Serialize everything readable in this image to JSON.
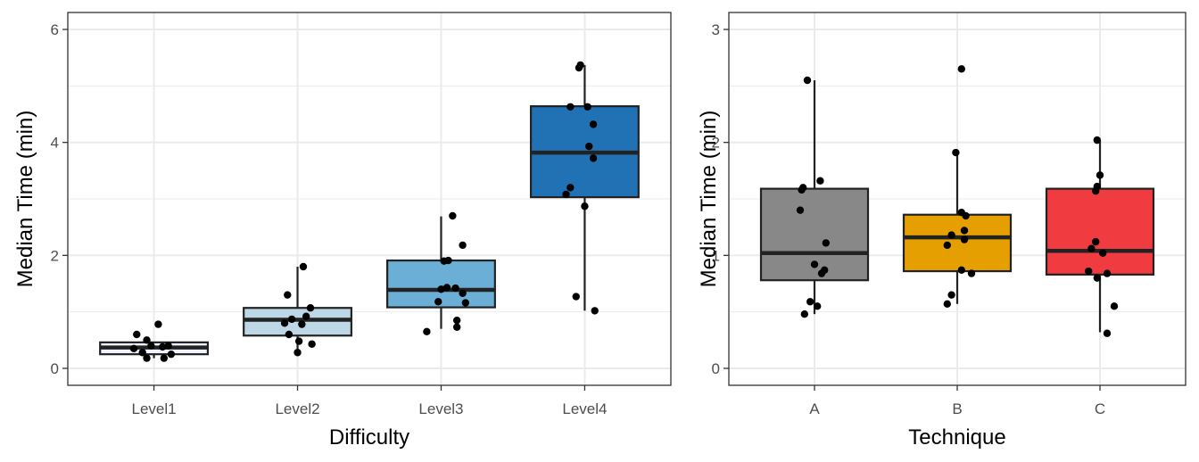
{
  "chart_data": [
    {
      "type": "box",
      "xlabel": "Difficulty",
      "ylabel": "Median Time (min)",
      "ylim": [
        -0.3,
        6.3
      ],
      "yticks": [
        0,
        2,
        4,
        6
      ],
      "grid": true,
      "categories": [
        "Level1",
        "Level2",
        "Level3",
        "Level4"
      ],
      "colors": [
        "#eff3ff",
        "#bdd7e7",
        "#6baed6",
        "#2171b5"
      ],
      "boxes": [
        {
          "whisker_low": 0.18,
          "q1": 0.25,
          "median": 0.37,
          "q3": 0.46,
          "whisker_high": 0.47
        },
        {
          "whisker_low": 0.28,
          "q1": 0.58,
          "median": 0.86,
          "q3": 1.07,
          "whisker_high": 1.8
        },
        {
          "whisker_low": 0.7,
          "q1": 1.08,
          "median": 1.39,
          "q3": 1.91,
          "whisker_high": 2.69
        },
        {
          "whisker_low": 1.02,
          "q1": 3.03,
          "median": 3.82,
          "q3": 4.64,
          "whisker_high": 5.37
        }
      ],
      "points": [
        {
          "cat": 0,
          "dx": -0.12,
          "y": 0.6
        },
        {
          "cat": 0,
          "dx": 0.03,
          "y": 0.78
        },
        {
          "cat": 0,
          "dx": -0.05,
          "y": 0.5
        },
        {
          "cat": 0,
          "dx": 0.1,
          "y": 0.4
        },
        {
          "cat": 0,
          "dx": -0.14,
          "y": 0.35
        },
        {
          "cat": 0,
          "dx": -0.02,
          "y": 0.4
        },
        {
          "cat": 0,
          "dx": 0.06,
          "y": 0.38
        },
        {
          "cat": 0,
          "dx": -0.08,
          "y": 0.28
        },
        {
          "cat": 0,
          "dx": -0.05,
          "y": 0.18
        },
        {
          "cat": 0,
          "dx": 0.12,
          "y": 0.25
        },
        {
          "cat": 0,
          "dx": 0.07,
          "y": 0.18
        },
        {
          "cat": 1,
          "dx": 0.04,
          "y": 1.8
        },
        {
          "cat": 1,
          "dx": -0.07,
          "y": 1.3
        },
        {
          "cat": 1,
          "dx": 0.09,
          "y": 1.07
        },
        {
          "cat": 1,
          "dx": 0.06,
          "y": 0.92
        },
        {
          "cat": 1,
          "dx": -0.04,
          "y": 0.87
        },
        {
          "cat": 1,
          "dx": -0.09,
          "y": 0.8
        },
        {
          "cat": 1,
          "dx": 0.03,
          "y": 0.78
        },
        {
          "cat": 1,
          "dx": -0.06,
          "y": 0.6
        },
        {
          "cat": 1,
          "dx": 0.01,
          "y": 0.48
        },
        {
          "cat": 1,
          "dx": 0.1,
          "y": 0.43
        },
        {
          "cat": 1,
          "dx": 0.0,
          "y": 0.28
        },
        {
          "cat": 2,
          "dx": 0.08,
          "y": 2.7
        },
        {
          "cat": 2,
          "dx": 0.15,
          "y": 2.18
        },
        {
          "cat": 2,
          "dx": 0.05,
          "y": 1.91
        },
        {
          "cat": 2,
          "dx": 0.02,
          "y": 1.9
        },
        {
          "cat": 2,
          "dx": 0.04,
          "y": 1.43
        },
        {
          "cat": 2,
          "dx": 0.1,
          "y": 1.42
        },
        {
          "cat": 2,
          "dx": 0.0,
          "y": 1.4
        },
        {
          "cat": 2,
          "dx": 0.15,
          "y": 1.33
        },
        {
          "cat": 2,
          "dx": 0.17,
          "y": 1.16
        },
        {
          "cat": 2,
          "dx": -0.02,
          "y": 1.18
        },
        {
          "cat": 2,
          "dx": 0.11,
          "y": 0.85
        },
        {
          "cat": 2,
          "dx": 0.11,
          "y": 0.73
        },
        {
          "cat": 2,
          "dx": -0.1,
          "y": 0.65
        },
        {
          "cat": 3,
          "dx": -0.03,
          "y": 5.37
        },
        {
          "cat": 3,
          "dx": -0.04,
          "y": 5.32
        },
        {
          "cat": 3,
          "dx": -0.1,
          "y": 4.63
        },
        {
          "cat": 3,
          "dx": 0.02,
          "y": 4.63
        },
        {
          "cat": 3,
          "dx": 0.06,
          "y": 4.32
        },
        {
          "cat": 3,
          "dx": 0.03,
          "y": 3.93
        },
        {
          "cat": 3,
          "dx": 0.06,
          "y": 3.72
        },
        {
          "cat": 3,
          "dx": -0.1,
          "y": 3.2
        },
        {
          "cat": 3,
          "dx": -0.13,
          "y": 3.08
        },
        {
          "cat": 3,
          "dx": 0.0,
          "y": 2.87
        },
        {
          "cat": 3,
          "dx": -0.06,
          "y": 1.27
        },
        {
          "cat": 3,
          "dx": 0.07,
          "y": 1.02
        }
      ]
    },
    {
      "type": "box",
      "xlabel": "Technique",
      "ylabel": "Median Time (min)",
      "ylim": [
        -0.15,
        3.15
      ],
      "yticks": [
        0,
        1,
        2,
        3
      ],
      "grid": true,
      "categories": [
        "A",
        "B",
        "C"
      ],
      "colors": [
        "#888888",
        "#e69f00",
        "#f03b40"
      ],
      "boxes": [
        {
          "whisker_low": 0.48,
          "q1": 0.78,
          "median": 1.02,
          "q3": 1.59,
          "whisker_high": 2.55
        },
        {
          "whisker_low": 0.57,
          "q1": 0.86,
          "median": 1.16,
          "q3": 1.36,
          "whisker_high": 1.91
        },
        {
          "whisker_low": 0.32,
          "q1": 0.83,
          "median": 1.04,
          "q3": 1.59,
          "whisker_high": 2.02
        }
      ],
      "points": [
        {
          "cat": 0,
          "dx": -0.05,
          "y": 2.55
        },
        {
          "cat": 0,
          "dx": 0.04,
          "y": 1.66
        },
        {
          "cat": 0,
          "dx": -0.08,
          "y": 1.6
        },
        {
          "cat": 0,
          "dx": -0.09,
          "y": 1.58
        },
        {
          "cat": 0,
          "dx": -0.1,
          "y": 1.4
        },
        {
          "cat": 0,
          "dx": 0.08,
          "y": 1.11
        },
        {
          "cat": 0,
          "dx": 0.0,
          "y": 0.92
        },
        {
          "cat": 0,
          "dx": 0.07,
          "y": 0.87
        },
        {
          "cat": 0,
          "dx": 0.05,
          "y": 0.84
        },
        {
          "cat": 0,
          "dx": -0.03,
          "y": 0.59
        },
        {
          "cat": 0,
          "dx": 0.02,
          "y": 0.55
        },
        {
          "cat": 0,
          "dx": -0.07,
          "y": 0.48
        },
        {
          "cat": 1,
          "dx": 0.03,
          "y": 2.65
        },
        {
          "cat": 1,
          "dx": -0.01,
          "y": 1.91
        },
        {
          "cat": 1,
          "dx": 0.03,
          "y": 1.38
        },
        {
          "cat": 1,
          "dx": 0.06,
          "y": 1.35
        },
        {
          "cat": 1,
          "dx": 0.05,
          "y": 1.22
        },
        {
          "cat": 1,
          "dx": -0.04,
          "y": 1.18
        },
        {
          "cat": 1,
          "dx": 0.05,
          "y": 1.14
        },
        {
          "cat": 1,
          "dx": -0.07,
          "y": 1.09
        },
        {
          "cat": 1,
          "dx": 0.03,
          "y": 0.87
        },
        {
          "cat": 1,
          "dx": 0.1,
          "y": 0.84
        },
        {
          "cat": 1,
          "dx": -0.04,
          "y": 0.65
        },
        {
          "cat": 1,
          "dx": -0.07,
          "y": 0.57
        },
        {
          "cat": 2,
          "dx": -0.02,
          "y": 2.02
        },
        {
          "cat": 2,
          "dx": 0.0,
          "y": 1.71
        },
        {
          "cat": 2,
          "dx": -0.02,
          "y": 1.61
        },
        {
          "cat": 2,
          "dx": -0.03,
          "y": 1.57
        },
        {
          "cat": 2,
          "dx": -0.03,
          "y": 1.12
        },
        {
          "cat": 2,
          "dx": -0.06,
          "y": 1.06
        },
        {
          "cat": 2,
          "dx": 0.02,
          "y": 1.02
        },
        {
          "cat": 2,
          "dx": -0.08,
          "y": 0.86
        },
        {
          "cat": 2,
          "dx": 0.05,
          "y": 0.84
        },
        {
          "cat": 2,
          "dx": -0.02,
          "y": 0.8
        },
        {
          "cat": 2,
          "dx": 0.1,
          "y": 0.55
        },
        {
          "cat": 2,
          "dx": 0.05,
          "y": 0.31
        }
      ]
    }
  ]
}
